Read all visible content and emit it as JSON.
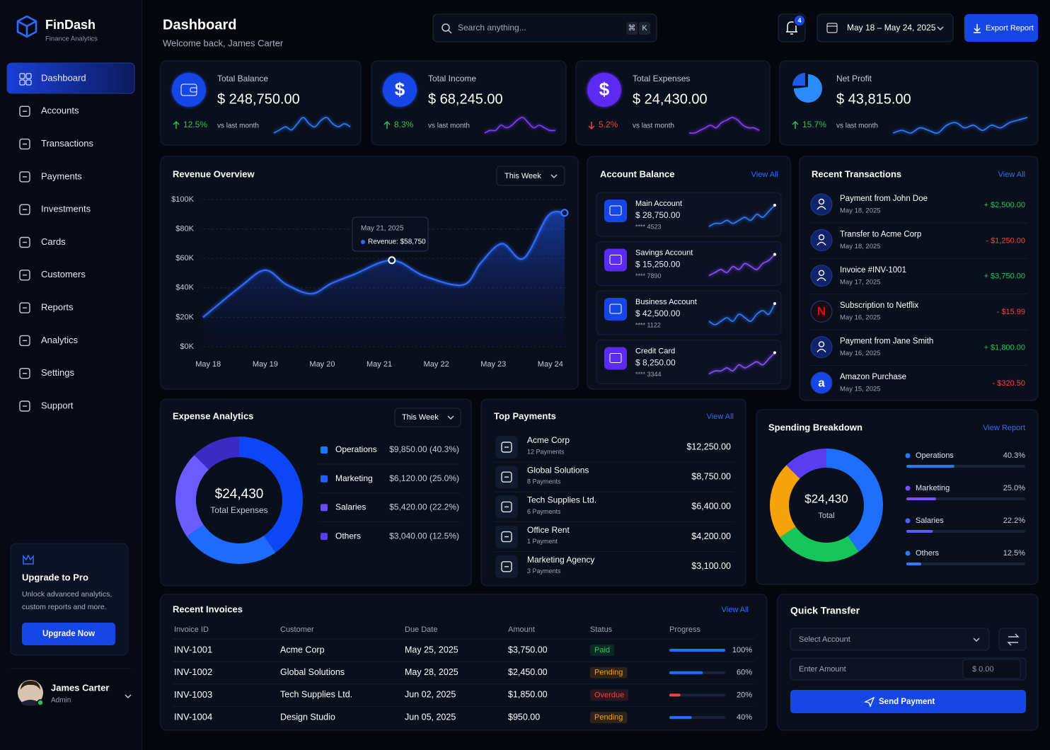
{
  "sidebar": {
    "brand": {
      "name": "FinDash",
      "tagline": "Finance Analytics"
    },
    "nav": [
      "Dashboard",
      "Accounts",
      "Transactions",
      "Payments",
      "Investments",
      "Cards",
      "Customers",
      "Reports",
      "Analytics",
      "Settings",
      "Support"
    ],
    "upgrade": {
      "title": "Upgrade to Pro",
      "text_lines": [
        "Unlock advanced analytics,",
        "custom reports and more."
      ],
      "button": "Upgrade Now"
    },
    "user": {
      "name": "James Carter",
      "role": "Admin"
    }
  },
  "header": {
    "title": "Dashboard",
    "subtitle": "Welcome back, James Carter",
    "search_placeholder": "Search anything...",
    "shortcut": [
      "⌘",
      "K"
    ],
    "notifications": 4,
    "date_range": "May 18 – May 24, 2025",
    "export": "Export Report"
  },
  "kpis": [
    {
      "label": "Total Balance",
      "value": "$ 248,750.00",
      "change": "12.5%",
      "trend": "up",
      "compare": "vs last month",
      "icon_color": "#1746e6",
      "color": "#2f7bff",
      "spark": [
        3,
        4,
        5,
        4,
        6,
        8,
        6,
        5,
        7,
        8,
        6,
        5,
        6,
        5
      ]
    },
    {
      "label": "Total Income",
      "value": "$ 68,245.00",
      "change": "8.3%",
      "icon": "$",
      "trend": "up",
      "compare": "vs last month",
      "icon_color": "#1746e6",
      "color": "#7a3cff",
      "spark": [
        3,
        4,
        4,
        6,
        5,
        6,
        8,
        9,
        7,
        5,
        6,
        5,
        4,
        4
      ]
    },
    {
      "label": "Total Expenses",
      "value": "$ 24,430.00",
      "change": "5.2%",
      "icon": "$",
      "trend": "down",
      "compare": "vs last month",
      "icon_color": "#5b2cf0",
      "color": "#8a3cff",
      "spark": [
        3,
        3,
        4,
        5,
        6,
        5,
        7,
        8,
        9,
        8,
        6,
        5,
        5,
        4
      ]
    },
    {
      "label": "Net Profit",
      "value": "$ 43,815.00",
      "change": "15.7%",
      "trend": "up",
      "compare": "vs last month",
      "icon_color": "#2a8cff",
      "color": "#2f7bff",
      "spark": [
        3,
        4,
        3,
        5,
        4,
        3,
        6,
        7,
        5,
        6,
        4,
        6,
        5,
        7,
        8,
        9
      ]
    }
  ],
  "chart_data": [
    {
      "type": "line",
      "title": "Revenue Overview",
      "filter": "This Week",
      "x": [
        -0.09,
        0.57,
        1.0,
        1.38,
        1.81,
        2.16,
        2.55,
        3.22,
        3.79,
        4.47,
        4.78,
        5.15,
        5.53,
        5.96,
        6.25
      ],
      "values": [
        20000,
        41000,
        52000,
        42000,
        36000,
        43000,
        49000,
        58750,
        48000,
        42000,
        57000,
        70000,
        60000,
        89000,
        91000
      ],
      "color": "#2f6bff",
      "xlim": [
        -0.09,
        6.25
      ],
      "xticks": [
        {
          "value": 0,
          "label": "May 18"
        },
        {
          "value": 1,
          "label": "May 19"
        },
        {
          "value": 2,
          "label": "May 20"
        },
        {
          "value": 3,
          "label": "May 21"
        },
        {
          "value": 4,
          "label": "May 22"
        },
        {
          "value": 5,
          "label": "May 23"
        },
        {
          "value": 6,
          "label": "May 24"
        }
      ],
      "ylim": [
        0,
        100000
      ],
      "yticks": [
        {
          "value": 0,
          "label": "$0K"
        },
        {
          "value": 20000,
          "label": "$20K"
        },
        {
          "value": 40000,
          "label": "$40K"
        },
        {
          "value": 60000,
          "label": "$60K"
        },
        {
          "value": 80000,
          "label": "$80K"
        },
        {
          "value": 100000,
          "label": "$100K"
        }
      ],
      "grid": true,
      "tooltip": {
        "title": "May 21, 2025",
        "text": "Revenue: $58,750"
      }
    },
    {
      "type": "donut",
      "title": "Expense Analytics",
      "filter": "This Week",
      "center_value": "$24,430",
      "center_label": "Total Expenses",
      "categories": [
        "Operations",
        "Marketing",
        "Salaries",
        "Others"
      ],
      "values": [
        9850,
        6120,
        5420,
        3040
      ],
      "value_labels": [
        "$9,850.00 (40.3%)",
        "$6,120.00 (25.0%)",
        "$5,420.00 (22.2%)",
        "$3,040.00 (12.5%)"
      ],
      "colors": [
        "#0d47f5",
        "#1f6bff",
        "#6b5cff",
        "#3b2bc4"
      ],
      "legend_colors": [
        "#1a7bff",
        "#2060ff",
        "#6a4dff",
        "#5b3cf5"
      ]
    },
    {
      "type": "donut",
      "title": "Spending Breakdown",
      "link": "View Report",
      "center_value": "$24,430",
      "center_label": "Total",
      "categories": [
        "Operations",
        "Marketing",
        "Salaries",
        "Others"
      ],
      "values": [
        40.3,
        25.0,
        22.2,
        12.5
      ],
      "value_labels": [
        "40.3%",
        "25.0%",
        "22.2%",
        "12.5%"
      ],
      "colors": [
        "#1f6fff",
        "#16c65a",
        "#f5a20b",
        "#5a3df0"
      ],
      "legend_colors": [
        "#1f7bff",
        "#7a4dff",
        "#5b5cff",
        "#2f7bff"
      ]
    }
  ],
  "account_balance": {
    "title": "Account Balance",
    "link": "View All",
    "accounts": [
      {
        "name": "Main Account",
        "balance": "$ 28,750.00",
        "number": "**** 4523",
        "color": "#1746e6",
        "spark": [
          2,
          3,
          3,
          4,
          3,
          4,
          5,
          4,
          6,
          5,
          7,
          9
        ]
      },
      {
        "name": "Savings Account",
        "balance": "$ 15,250.00",
        "number": "**** 7890",
        "color": "#5b2cf0",
        "spark": [
          2,
          3,
          4,
          3,
          5,
          4,
          6,
          5,
          4,
          6,
          7,
          9
        ]
      },
      {
        "name": "Business Account",
        "balance": "$ 42,500.00",
        "number": "**** 1122",
        "color": "#1746e6",
        "spark": [
          3,
          2,
          3,
          4,
          3,
          5,
          4,
          3,
          5,
          6,
          5,
          8
        ]
      },
      {
        "name": "Credit Card",
        "balance": "$ 8,250.00",
        "number": "**** 3344",
        "color": "#5b2cf0",
        "spark": [
          2,
          3,
          3,
          4,
          3,
          5,
          4,
          5,
          6,
          5,
          7,
          9
        ]
      }
    ]
  },
  "transactions": {
    "title": "Recent Transactions",
    "link": "View All",
    "items": [
      {
        "title": "Payment from John Doe",
        "date": "May 18, 2025",
        "amount": "+ $2,500.00",
        "color": "#22c55e"
      },
      {
        "title": "Transfer to Acme Corp",
        "date": "May 18, 2025",
        "amount": "- $1,250.00",
        "color": "#ef4444"
      },
      {
        "title": "Invoice #INV-1001",
        "date": "May 17, 2025",
        "amount": "+ $3,750.00",
        "color": "#22c55e"
      },
      {
        "title": "Subscription to Netflix",
        "date": "May 16, 2025",
        "amount": "- $15.99",
        "color": "#ef4444",
        "icon": "N",
        "icon_color": "#e50914"
      },
      {
        "title": "Payment from Jane Smith",
        "date": "May 16, 2025",
        "amount": "+ $1,800.00",
        "color": "#22c55e"
      },
      {
        "title": "Amazon Purchase",
        "date": "May 15, 2025",
        "amount": "- $320.50",
        "color": "#ef4444",
        "icon": "a",
        "icon_color": "#ffffff"
      }
    ]
  },
  "top_payments": {
    "title": "Top Payments",
    "link": "View All",
    "items": [
      {
        "name": "Acme Corp",
        "count": "12 Payments",
        "amount": "$12,250.00"
      },
      {
        "name": "Global Solutions",
        "count": "8 Payments",
        "amount": "$8,750.00"
      },
      {
        "name": "Tech Supplies Ltd.",
        "count": "6 Payments",
        "amount": "$6,400.00"
      },
      {
        "name": "Office Rent",
        "count": "1 Payment",
        "amount": "$4,200.00"
      },
      {
        "name": "Marketing Agency",
        "count": "3 Payments",
        "amount": "$3,100.00"
      }
    ]
  },
  "invoices": {
    "title": "Recent Invoices",
    "link": "View All",
    "columns": [
      "Invoice ID",
      "Customer",
      "Due Date",
      "Amount",
      "Status",
      "Progress"
    ],
    "rows": [
      {
        "id": "INV-1001",
        "customer": "Acme Corp",
        "due": "May 25, 2025",
        "amount": "$3,750.00",
        "status": "Paid",
        "progress": "100%",
        "status_color": "#22c55e",
        "bar_color": "#1f6fff"
      },
      {
        "id": "INV-1002",
        "customer": "Global Solutions",
        "due": "May 28, 2025",
        "amount": "$2,450.00",
        "status": "Pending",
        "progress": "60%",
        "status_color": "#f59e0b",
        "bar_color": "#1f6fff"
      },
      {
        "id": "INV-1003",
        "customer": "Tech Supplies Ltd.",
        "due": "Jun 02, 2025",
        "amount": "$1,850.00",
        "status": "Overdue",
        "progress": "20%",
        "status_color": "#ef4444",
        "bar_color": "#ef4444"
      },
      {
        "id": "INV-1004",
        "customer": "Design Studio",
        "due": "Jun 05, 2025",
        "amount": "$950.00",
        "status": "Pending",
        "progress": "40%",
        "status_color": "#f59e0b",
        "bar_color": "#1f6fff"
      }
    ]
  },
  "quick_transfer": {
    "title": "Quick Transfer",
    "select": "Select Account",
    "amount_placeholder": "Enter Amount",
    "amount_value": "$ 0.00",
    "button": "Send Payment"
  }
}
